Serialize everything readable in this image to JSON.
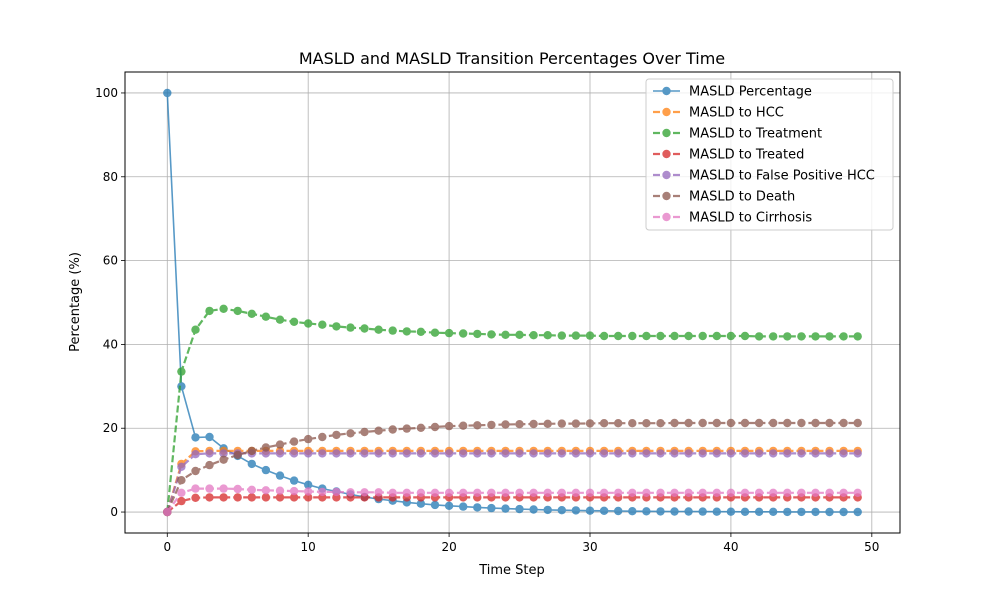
{
  "chart_data": {
    "type": "line",
    "title": "MASLD and MASLD Transition Percentages Over Time",
    "xlabel": "Time Step",
    "ylabel": "Percentage (%)",
    "xlim": [
      -3.0,
      52.0
    ],
    "ylim": [
      -5.0,
      105.0
    ],
    "xticks": [
      0,
      10,
      20,
      30,
      40,
      50
    ],
    "yticks": [
      0,
      20,
      40,
      60,
      80,
      100
    ],
    "grid": true,
    "legend_position": "top-right",
    "x": [
      0,
      1,
      2,
      3,
      4,
      5,
      6,
      7,
      8,
      9,
      10,
      11,
      12,
      13,
      14,
      15,
      16,
      17,
      18,
      19,
      20,
      21,
      22,
      23,
      24,
      25,
      26,
      27,
      28,
      29,
      30,
      31,
      32,
      33,
      34,
      35,
      36,
      37,
      38,
      39,
      40,
      41,
      42,
      43,
      44,
      45,
      46,
      47,
      48,
      49
    ],
    "series": [
      {
        "name": "MASLD Percentage",
        "color": "#1f77b4",
        "dashed": false,
        "values": [
          100,
          30,
          17.8,
          17.9,
          15.2,
          13.4,
          11.5,
          10,
          8.7,
          7.5,
          6.5,
          5.6,
          4.9,
          4.2,
          3.6,
          3.1,
          2.7,
          2.3,
          2,
          1.7,
          1.5,
          1.3,
          1.1,
          0.95,
          0.82,
          0.7,
          0.6,
          0.52,
          0.45,
          0.39,
          0.33,
          0.29,
          0.25,
          0.21,
          0.18,
          0.16,
          0.14,
          0.12,
          0.1,
          0.09,
          0.08,
          0.07,
          0.06,
          0.05,
          0.04,
          0.03,
          0.03,
          0.02,
          0.02,
          0.02
        ]
      },
      {
        "name": "MASLD to HCC",
        "color": "#ff7f0e",
        "dashed": true,
        "values": [
          0,
          11.5,
          14.5,
          14.6,
          14.6,
          14.6,
          14.6,
          14.6,
          14.6,
          14.6,
          14.6,
          14.6,
          14.6,
          14.6,
          14.6,
          14.6,
          14.6,
          14.6,
          14.6,
          14.6,
          14.6,
          14.6,
          14.6,
          14.6,
          14.6,
          14.6,
          14.6,
          14.6,
          14.6,
          14.6,
          14.6,
          14.6,
          14.6,
          14.6,
          14.6,
          14.6,
          14.6,
          14.6,
          14.6,
          14.6,
          14.6,
          14.6,
          14.6,
          14.6,
          14.6,
          14.6,
          14.6,
          14.6,
          14.6,
          14.6
        ]
      },
      {
        "name": "MASLD to Treatment",
        "color": "#2ca02c",
        "dashed": true,
        "values": [
          0,
          33.5,
          43.5,
          48,
          48.5,
          48,
          47.3,
          46.6,
          45.9,
          45.4,
          45,
          44.7,
          44.3,
          44,
          43.8,
          43.5,
          43.3,
          43.1,
          43,
          42.8,
          42.7,
          42.6,
          42.5,
          42.4,
          42.3,
          42.3,
          42.2,
          42.2,
          42.1,
          42.1,
          42.1,
          42,
          42,
          42,
          42,
          42,
          42,
          42,
          42,
          42,
          42,
          42,
          41.9,
          41.9,
          41.9,
          41.9,
          41.9,
          41.9,
          41.9,
          41.9
        ]
      },
      {
        "name": "MASLD to Treated",
        "color": "#d62728",
        "dashed": true,
        "values": [
          0,
          2.6,
          3.4,
          3.5,
          3.5,
          3.5,
          3.5,
          3.5,
          3.5,
          3.5,
          3.5,
          3.5,
          3.5,
          3.5,
          3.5,
          3.5,
          3.5,
          3.5,
          3.5,
          3.5,
          3.5,
          3.5,
          3.5,
          3.5,
          3.5,
          3.5,
          3.5,
          3.5,
          3.5,
          3.5,
          3.5,
          3.5,
          3.5,
          3.5,
          3.5,
          3.5,
          3.5,
          3.5,
          3.5,
          3.5,
          3.5,
          3.5,
          3.5,
          3.5,
          3.5,
          3.5,
          3.5,
          3.5,
          3.5,
          3.5
        ]
      },
      {
        "name": "MASLD to False Positive HCC",
        "color": "#9467bd",
        "dashed": true,
        "values": [
          0,
          10.8,
          13.8,
          14,
          14,
          14,
          14,
          14,
          14,
          14,
          14,
          14,
          14,
          14,
          14,
          14,
          14,
          14,
          14,
          14,
          14,
          14,
          14,
          14,
          14,
          14,
          14,
          14,
          14,
          14,
          14,
          14,
          14,
          14,
          14,
          14,
          14,
          14,
          14,
          14,
          14,
          14,
          14,
          14,
          14,
          14,
          14,
          14,
          14,
          14
        ]
      },
      {
        "name": "MASLD to Death",
        "color": "#8c564b",
        "dashed": true,
        "values": [
          0,
          7.6,
          9.8,
          11.2,
          12.5,
          13.6,
          14.6,
          15.4,
          16.1,
          16.8,
          17.4,
          17.9,
          18.4,
          18.8,
          19.1,
          19.4,
          19.7,
          19.9,
          20.1,
          20.3,
          20.5,
          20.6,
          20.7,
          20.8,
          20.9,
          20.95,
          21,
          21.05,
          21.1,
          21.1,
          21.15,
          21.2,
          21.2,
          21.2,
          21.2,
          21.2,
          21.25,
          21.25,
          21.25,
          21.25,
          21.25,
          21.25,
          21.25,
          21.25,
          21.25,
          21.25,
          21.25,
          21.25,
          21.25,
          21.25
        ]
      },
      {
        "name": "MASLD to Cirrhosis",
        "color": "#e377c2",
        "dashed": true,
        "values": [
          0,
          4.6,
          5.6,
          5.6,
          5.6,
          5.5,
          5.3,
          5.2,
          5.1,
          5,
          4.9,
          4.8,
          4.8,
          4.7,
          4.7,
          4.7,
          4.6,
          4.6,
          4.6,
          4.6,
          4.6,
          4.6,
          4.6,
          4.6,
          4.6,
          4.6,
          4.6,
          4.6,
          4.6,
          4.6,
          4.6,
          4.6,
          4.6,
          4.6,
          4.6,
          4.6,
          4.6,
          4.6,
          4.6,
          4.6,
          4.6,
          4.6,
          4.6,
          4.6,
          4.6,
          4.6,
          4.6,
          4.6,
          4.6,
          4.6
        ]
      }
    ]
  }
}
